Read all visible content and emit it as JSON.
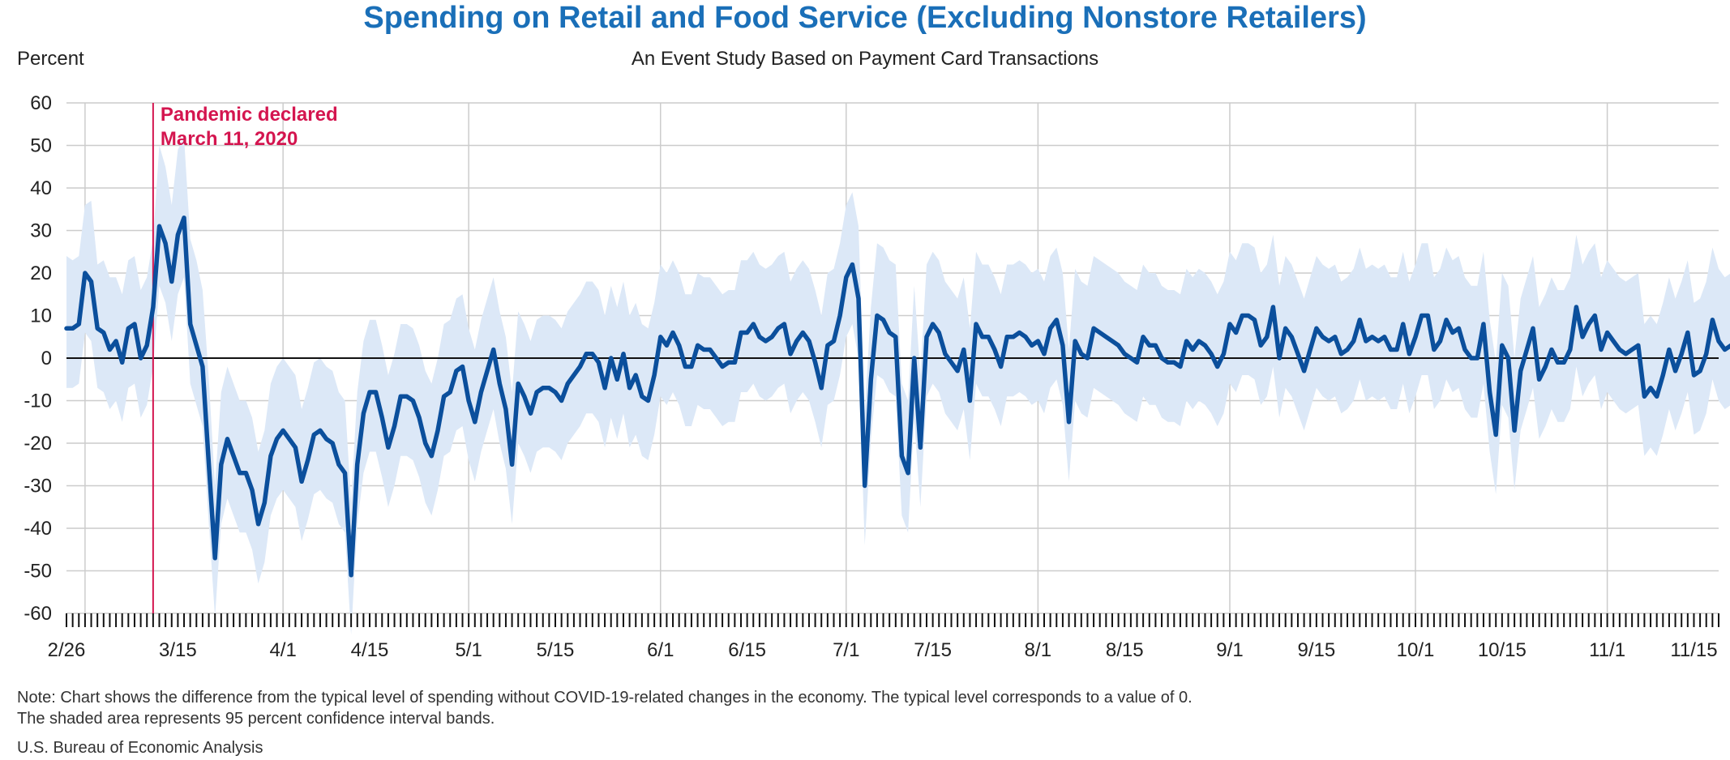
{
  "chart_data": {
    "type": "line",
    "title": "Spending on Retail and Food Service (Excluding Nonstore Retailers)",
    "subtitle": "An Event Study Based on Payment Card Transactions",
    "ylabel": "Percent",
    "xlabel": "",
    "ylim": [
      -60,
      60
    ],
    "yticks": [
      60,
      50,
      40,
      30,
      20,
      10,
      0,
      -10,
      -20,
      -30,
      -40,
      -50,
      -60
    ],
    "x_start": "2020-02-26",
    "x_end": "2020-11-19",
    "xticks": [
      {
        "date": "2020-02-26",
        "label": "2/26"
      },
      {
        "date": "2020-03-15",
        "label": "3/15"
      },
      {
        "date": "2020-04-01",
        "label": "4/1"
      },
      {
        "date": "2020-04-15",
        "label": "4/15"
      },
      {
        "date": "2020-05-01",
        "label": "5/1"
      },
      {
        "date": "2020-05-15",
        "label": "5/15"
      },
      {
        "date": "2020-06-01",
        "label": "6/1"
      },
      {
        "date": "2020-06-15",
        "label": "6/15"
      },
      {
        "date": "2020-07-01",
        "label": "7/1"
      },
      {
        "date": "2020-07-15",
        "label": "7/15"
      },
      {
        "date": "2020-08-01",
        "label": "8/1"
      },
      {
        "date": "2020-08-15",
        "label": "8/15"
      },
      {
        "date": "2020-09-01",
        "label": "9/1"
      },
      {
        "date": "2020-09-15",
        "label": "9/15"
      },
      {
        "date": "2020-10-01",
        "label": "10/1"
      },
      {
        "date": "2020-10-15",
        "label": "10/15"
      },
      {
        "date": "2020-11-01",
        "label": "11/1"
      },
      {
        "date": "2020-11-15",
        "label": "11/15"
      }
    ],
    "gridlines": [
      "2020-02-29",
      "2020-04-01",
      "2020-05-01",
      "2020-06-01",
      "2020-07-01",
      "2020-08-01",
      "2020-09-01",
      "2020-10-01",
      "2020-11-01"
    ],
    "grid": true,
    "annotation": {
      "date": "2020-03-11",
      "lines": [
        "Pandemic declared",
        "March 11, 2020"
      ],
      "color": "#d4154f"
    },
    "colors": {
      "line": "#0b4f9c",
      "band": "#dce8f7",
      "title": "#1a6fb8",
      "annotation": "#d4154f",
      "grid": "#cccccc"
    },
    "series": [
      {
        "type": "line",
        "values": [
          7,
          7,
          8,
          20,
          18,
          7,
          6,
          2,
          4,
          -1,
          7,
          8,
          0,
          3,
          12,
          31,
          27,
          18,
          29,
          33,
          8,
          3,
          -2,
          -25,
          -47,
          -25,
          -19,
          -23,
          -27,
          -27,
          -31,
          -39,
          -34,
          -23,
          -19,
          -17,
          -19,
          -21,
          -29,
          -24,
          -18,
          -17,
          -19,
          -20,
          -25,
          -27,
          -51,
          -25,
          -13,
          -8,
          -8,
          -14,
          -21,
          -16,
          -9,
          -9,
          -10,
          -14,
          -20,
          -23,
          -17,
          -9,
          -8,
          -3,
          -2,
          -10,
          -15,
          -8,
          -3,
          2,
          -6,
          -12,
          -25,
          -6,
          -9,
          -13,
          -8,
          -7,
          -7,
          -8,
          -10,
          -6,
          -4,
          -2,
          1,
          1,
          -1,
          -7,
          0,
          -5,
          1,
          -7,
          -4,
          -9,
          -10,
          -4,
          5,
          3,
          6,
          3,
          -2,
          -2,
          3,
          2,
          2,
          0,
          -2,
          -1,
          -1,
          6,
          6,
          8,
          5,
          4,
          5,
          7,
          8,
          1,
          4,
          6,
          4,
          -1,
          -7,
          3,
          4,
          10,
          19,
          22,
          14,
          -30,
          -5,
          10,
          9,
          6,
          5,
          -23,
          -27,
          0,
          -21,
          5,
          8,
          6,
          1,
          -1,
          -3,
          2,
          -10,
          8,
          5,
          5,
          2,
          -2,
          5,
          5,
          6,
          5,
          3,
          4,
          1,
          7,
          9,
          3,
          -15,
          4,
          1,
          0,
          7,
          6,
          5,
          4,
          3,
          1,
          0,
          -1,
          5,
          3,
          3,
          0,
          -1,
          -1,
          -2,
          4,
          2,
          4,
          3,
          1,
          -2,
          1,
          8,
          6,
          10,
          10,
          9,
          3,
          5,
          12,
          0,
          7,
          5,
          1,
          -3,
          2,
          7,
          5,
          4,
          5,
          1,
          2,
          4,
          9,
          4,
          5,
          4,
          5,
          2,
          2,
          8,
          1,
          5,
          10,
          10,
          2,
          4,
          9,
          6,
          7,
          2,
          0,
          0,
          8,
          -8,
          -18,
          3,
          0,
          -17,
          -3,
          2,
          7,
          -5,
          -2,
          2,
          -1,
          -1,
          2,
          12,
          5,
          8,
          10,
          2,
          6,
          4,
          2,
          1,
          2,
          3,
          -9,
          -7,
          -9,
          -4,
          2,
          -3,
          1,
          6,
          -4,
          -3,
          1,
          9,
          4,
          2,
          3,
          2
        ]
      },
      {
        "type": "confidence_band",
        "upper": [
          24,
          23,
          24,
          36,
          37,
          22,
          23,
          19,
          19,
          15,
          23,
          24,
          16,
          19,
          28,
          50,
          45,
          36,
          49,
          52,
          28,
          23,
          16,
          -5,
          -30,
          -8,
          -2,
          -6,
          -10,
          -10,
          -14,
          -22,
          -17,
          -6,
          -2,
          0,
          -2,
          -4,
          -12,
          -7,
          -1,
          0,
          -2,
          -3,
          -8,
          -10,
          -34,
          -8,
          4,
          9,
          9,
          3,
          -4,
          1,
          8,
          8,
          7,
          3,
          -3,
          -6,
          0,
          8,
          9,
          14,
          15,
          7,
          2,
          9,
          14,
          19,
          11,
          5,
          -8,
          11,
          8,
          4,
          9,
          10,
          10,
          9,
          7,
          11,
          13,
          15,
          18,
          18,
          16,
          10,
          17,
          12,
          18,
          10,
          13,
          8,
          7,
          13,
          22,
          20,
          23,
          20,
          15,
          15,
          20,
          19,
          19,
          17,
          15,
          16,
          16,
          23,
          23,
          25,
          22,
          21,
          22,
          24,
          25,
          18,
          21,
          23,
          21,
          16,
          10,
          20,
          21,
          27,
          36,
          39,
          31,
          -13,
          12,
          27,
          26,
          23,
          22,
          -6,
          -10,
          17,
          -4,
          22,
          25,
          23,
          18,
          16,
          14,
          19,
          7,
          25,
          22,
          22,
          19,
          15,
          22,
          22,
          23,
          22,
          20,
          21,
          18,
          24,
          26,
          20,
          2,
          21,
          18,
          17,
          24,
          23,
          22,
          21,
          20,
          18,
          17,
          16,
          22,
          20,
          20,
          17,
          16,
          16,
          15,
          21,
          19,
          21,
          20,
          18,
          15,
          18,
          25,
          23,
          27,
          27,
          26,
          20,
          22,
          29,
          17,
          24,
          22,
          18,
          14,
          19,
          24,
          22,
          21,
          22,
          18,
          19,
          21,
          26,
          21,
          22,
          21,
          22,
          19,
          19,
          25,
          18,
          22,
          27,
          27,
          19,
          21,
          26,
          23,
          24,
          19,
          17,
          17,
          25,
          9,
          -1,
          20,
          17,
          0,
          14,
          19,
          24,
          12,
          15,
          19,
          16,
          16,
          19,
          29,
          22,
          25,
          27,
          19,
          23,
          21,
          19,
          18,
          19,
          20,
          8,
          10,
          8,
          13,
          19,
          14,
          18,
          23,
          13,
          14,
          18,
          26,
          21,
          19,
          20,
          19
        ],
        "lower": [
          -7,
          -7,
          -6,
          6,
          4,
          -7,
          -8,
          -12,
          -10,
          -15,
          -7,
          -6,
          -14,
          -11,
          -2,
          17,
          13,
          4,
          15,
          19,
          -6,
          -11,
          -16,
          -39,
          -61,
          -39,
          -33,
          -37,
          -41,
          -41,
          -45,
          -53,
          -48,
          -37,
          -33,
          -31,
          -33,
          -35,
          -43,
          -38,
          -32,
          -31,
          -33,
          -34,
          -39,
          -41,
          -65,
          -39,
          -27,
          -22,
          -22,
          -28,
          -35,
          -30,
          -23,
          -23,
          -24,
          -28,
          -34,
          -37,
          -31,
          -23,
          -22,
          -17,
          -16,
          -24,
          -29,
          -22,
          -17,
          -12,
          -20,
          -26,
          -39,
          -20,
          -23,
          -27,
          -22,
          -21,
          -21,
          -22,
          -24,
          -20,
          -18,
          -16,
          -13,
          -13,
          -15,
          -21,
          -14,
          -19,
          -13,
          -21,
          -18,
          -23,
          -24,
          -18,
          -9,
          -11,
          -8,
          -11,
          -16,
          -16,
          -11,
          -12,
          -12,
          -14,
          -16,
          -15,
          -15,
          -8,
          -8,
          -6,
          -9,
          -10,
          -9,
          -7,
          -6,
          -13,
          -10,
          -8,
          -10,
          -15,
          -21,
          -11,
          -10,
          -4,
          5,
          8,
          0,
          -44,
          -19,
          -4,
          -5,
          -8,
          -9,
          -37,
          -41,
          -14,
          -35,
          -9,
          -6,
          -8,
          -13,
          -15,
          -17,
          -12,
          -24,
          -6,
          -9,
          -9,
          -12,
          -16,
          -9,
          -9,
          -8,
          -9,
          -11,
          -10,
          -13,
          -7,
          -5,
          -11,
          -29,
          -10,
          -13,
          -14,
          -7,
          -8,
          -9,
          -10,
          -11,
          -13,
          -14,
          -15,
          -9,
          -11,
          -11,
          -14,
          -15,
          -15,
          -16,
          -10,
          -12,
          -10,
          -11,
          -13,
          -16,
          -13,
          -6,
          -8,
          -4,
          -4,
          -5,
          -11,
          -9,
          -2,
          -14,
          -7,
          -9,
          -13,
          -17,
          -12,
          -7,
          -9,
          -10,
          -9,
          -13,
          -12,
          -10,
          -5,
          -10,
          -9,
          -10,
          -9,
          -12,
          -12,
          -6,
          -13,
          -9,
          -4,
          -4,
          -12,
          -10,
          -5,
          -8,
          -7,
          -12,
          -14,
          -14,
          -6,
          -22,
          -32,
          -11,
          -14,
          -31,
          -17,
          -12,
          -7,
          -19,
          -16,
          -12,
          -15,
          -15,
          -12,
          -2,
          -9,
          -6,
          -4,
          -12,
          -8,
          -10,
          -12,
          -13,
          -12,
          -11,
          -23,
          -21,
          -23,
          -18,
          -12,
          -17,
          -13,
          -8,
          -18,
          -17,
          -13,
          -5,
          -10,
          -12,
          -11,
          -12
        ]
      }
    ]
  },
  "footer": {
    "note_line1": "Note: Chart shows the difference from the typical level of spending without COVID-19-related changes in the economy. The typical level corresponds to a value of 0.",
    "note_line2": "The shaded area represents 95 percent confidence interval bands.",
    "source": "U.S. Bureau of Economic Analysis"
  }
}
